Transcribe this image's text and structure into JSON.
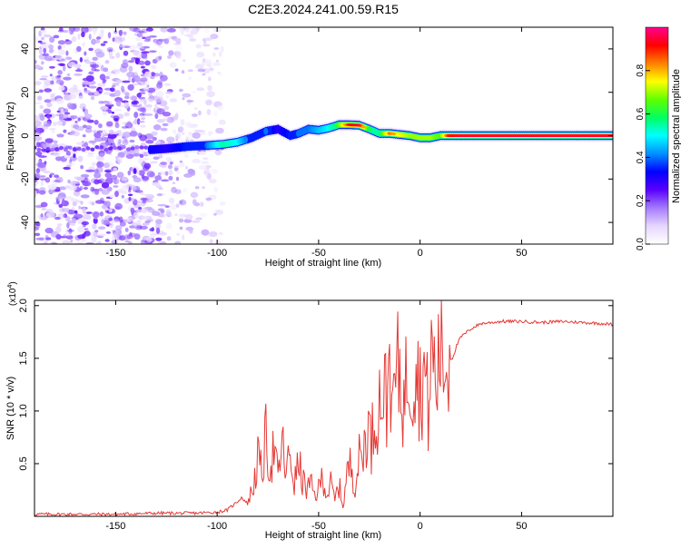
{
  "page_title": "C2E3.2024.241.00.59.R15",
  "colors": {
    "axis": "#000000",
    "snr_line": "#e53935",
    "colormap": [
      "#ffffff",
      "#e6d6ff",
      "#a47bff",
      "#5a00ff",
      "#0000ff",
      "#0090ff",
      "#00ffff",
      "#00ff60",
      "#60ff00",
      "#ffff00",
      "#ff8000",
      "#ff0000",
      "#ff0090"
    ]
  },
  "chart_data": [
    {
      "type": "heatmap",
      "title": "C2E3.2024.241.00.59.R15",
      "xlabel": "Height of straight line (km)",
      "ylabel": "Frequency (Hz)",
      "xlim": [
        -190,
        95
      ],
      "ylim": [
        -50,
        50
      ],
      "x_ticks": [
        -150,
        -100,
        -50,
        0,
        50
      ],
      "y_ticks": [
        -40,
        -20,
        0,
        20,
        40
      ],
      "grid": false,
      "colorbar": {
        "label": "Normalized spectral amplitude",
        "range": [
          0,
          1
        ],
        "ticks": [
          0.0,
          0.2,
          0.4,
          0.6,
          0.8
        ]
      },
      "noise_region": {
        "x_range": [
          -190,
          -97
        ],
        "y_range": [
          -50,
          50
        ]
      },
      "ridge": {
        "x": [
          -133,
          -125,
          -115,
          -105,
          -97,
          -90,
          -83,
          -76,
          -70,
          -64,
          -60,
          -55,
          -50,
          -45,
          -40,
          -35,
          -30,
          -25,
          -20,
          -15,
          -10,
          -5,
          0,
          5,
          10,
          14,
          20,
          40,
          60,
          80,
          95
        ],
        "freq": [
          -6.5,
          -6,
          -5,
          -4.5,
          -4,
          -3,
          -1,
          2,
          3,
          0,
          1,
          3,
          2.5,
          3.5,
          5,
          5,
          4.8,
          3,
          1,
          1,
          0.5,
          0,
          -1,
          -1,
          0,
          0,
          0,
          0,
          0,
          0,
          0
        ],
        "amplitude": [
          0.32,
          0.3,
          0.35,
          0.4,
          0.55,
          0.5,
          0.35,
          0.4,
          0.3,
          0.35,
          0.4,
          0.4,
          0.45,
          0.5,
          0.65,
          0.9,
          0.95,
          0.6,
          0.55,
          0.85,
          0.75,
          0.7,
          0.7,
          0.7,
          0.65,
          0.9,
          0.97,
          0.97,
          0.97,
          0.97,
          0.97
        ]
      }
    },
    {
      "type": "line",
      "xlabel": "Height of straight line (km)",
      "ylabel": "SNR (10 * v/v)",
      "y_multiplier": "(x10",
      "y_multiplier_exp": "4",
      "xlim": [
        -190,
        95
      ],
      "ylim": [
        0,
        2.05
      ],
      "x_ticks": [
        -150,
        -100,
        -50,
        0,
        50
      ],
      "y_ticks": [
        0.5,
        1.0,
        1.5,
        2.0
      ],
      "grid": false,
      "series": [
        {
          "x": [
            -190,
            -170,
            -150,
            -130,
            -110,
            -100,
            -95,
            -90,
            -88,
            -85,
            -82,
            -80,
            -78,
            -76,
            -74,
            -72,
            -70,
            -68,
            -66,
            -64,
            -62,
            -60,
            -58,
            -56,
            -54,
            -52,
            -50,
            -48,
            -46,
            -44,
            -42,
            -40,
            -38,
            -36,
            -34,
            -32,
            -30,
            -28,
            -26,
            -24,
            -22,
            -20,
            -18,
            -16,
            -15,
            -14,
            -13,
            -12,
            -10,
            -8,
            -6,
            -4,
            -2,
            0,
            2,
            4,
            6,
            8,
            10,
            12,
            14,
            16,
            18,
            20,
            25,
            30,
            35,
            40,
            50,
            60,
            70,
            80,
            90,
            95
          ],
          "y": [
            0.02,
            0.02,
            0.02,
            0.03,
            0.03,
            0.04,
            0.06,
            0.14,
            0.18,
            0.12,
            0.3,
            0.55,
            0.4,
            0.75,
            0.45,
            0.65,
            0.35,
            0.7,
            0.4,
            0.6,
            0.3,
            0.5,
            0.35,
            0.25,
            0.3,
            0.2,
            0.25,
            0.4,
            0.2,
            0.3,
            0.15,
            0.3,
            0.1,
            0.4,
            0.5,
            0.3,
            0.55,
            0.6,
            0.9,
            0.7,
            1.0,
            1.1,
            1.2,
            1.05,
            2.03,
            0.8,
            1.25,
            1.3,
            1.4,
            1.05,
            1.45,
            1.3,
            1.55,
            1.2,
            1.4,
            1.0,
            1.6,
            1.2,
            1.7,
            1.4,
            1.5,
            1.5,
            1.62,
            1.7,
            1.78,
            1.83,
            1.84,
            1.85,
            1.85,
            1.84,
            1.85,
            1.84,
            1.83,
            1.82
          ]
        }
      ]
    }
  ]
}
